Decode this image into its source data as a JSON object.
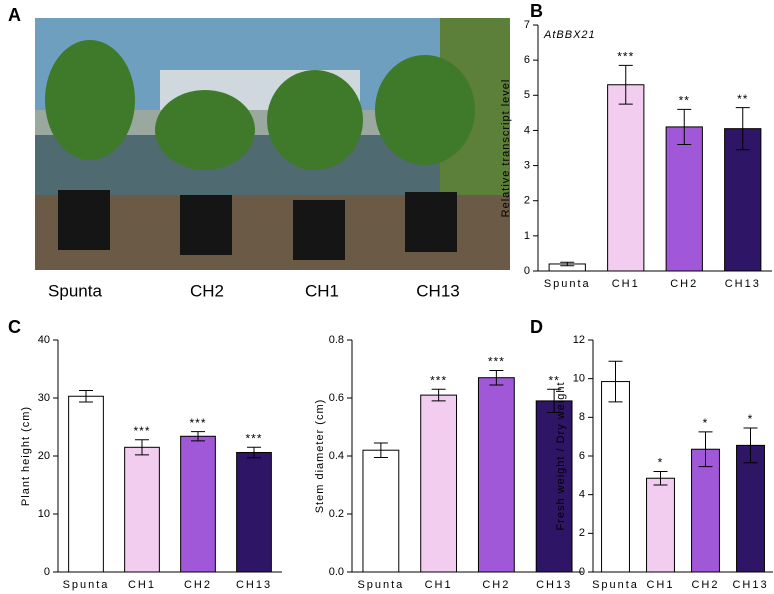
{
  "panel_labels": [
    "A",
    "B",
    "C",
    "D"
  ],
  "photo_labels": [
    "Spunta",
    "CH2",
    "CH1",
    "CH13"
  ],
  "chart_data": [
    {
      "type": "bar",
      "title": "AtBBX21",
      "ylabel": "Relative transcript level",
      "categories": [
        "Spunta",
        "CH1",
        "CH2",
        "CH13"
      ],
      "values": [
        0.2,
        5.3,
        4.1,
        4.05
      ],
      "errors": [
        0.05,
        0.55,
        0.5,
        0.6
      ],
      "annotations": [
        null,
        "***",
        "**",
        "**"
      ],
      "colors": [
        "#ffffff",
        "#f2cdf0",
        "#a057d8",
        "#2e1566"
      ],
      "ylim": [
        0,
        7
      ],
      "yticks": [
        0,
        1,
        2,
        3,
        4,
        5,
        6,
        7
      ]
    },
    {
      "type": "bar",
      "ylabel": "Plant height (cm)",
      "categories": [
        "Spunta",
        "CH1",
        "CH2",
        "CH13"
      ],
      "values": [
        30.3,
        21.5,
        23.4,
        20.6
      ],
      "errors": [
        1.0,
        1.3,
        0.8,
        0.9
      ],
      "annotations": [
        null,
        "***",
        "***",
        "***"
      ],
      "colors": [
        "#ffffff",
        "#f2cdf0",
        "#a057d8",
        "#2e1566"
      ],
      "ylim": [
        0,
        40
      ],
      "yticks": [
        0,
        10,
        20,
        30,
        40
      ]
    },
    {
      "type": "bar",
      "ylabel": "Stem diameter (cm)",
      "categories": [
        "Spunta",
        "CH1",
        "CH2",
        "CH13"
      ],
      "values": [
        0.42,
        0.61,
        0.67,
        0.59
      ],
      "errors": [
        0.025,
        0.02,
        0.025,
        0.04
      ],
      "annotations": [
        null,
        "***",
        "***",
        "**"
      ],
      "colors": [
        "#ffffff",
        "#f2cdf0",
        "#a057d8",
        "#2e1566"
      ],
      "ylim": [
        0,
        0.8
      ],
      "yticks": [
        {
          "value": 0,
          "label": "0.0"
        },
        0.2,
        0.4,
        0.6,
        0.8
      ]
    },
    {
      "type": "bar",
      "ylabel": "Fresh weight / Dry weight",
      "categories": [
        "Spunta",
        "CH1",
        "CH2",
        "CH13"
      ],
      "values": [
        9.85,
        4.85,
        6.35,
        6.55
      ],
      "errors": [
        1.05,
        0.35,
        0.9,
        0.9
      ],
      "annotations": [
        null,
        "*",
        "*",
        "*"
      ],
      "colors": [
        "#ffffff",
        "#f2cdf0",
        "#a057d8",
        "#2e1566"
      ],
      "ylim": [
        0,
        12
      ],
      "yticks": [
        0,
        2,
        4,
        6,
        8,
        10,
        12
      ]
    }
  ]
}
